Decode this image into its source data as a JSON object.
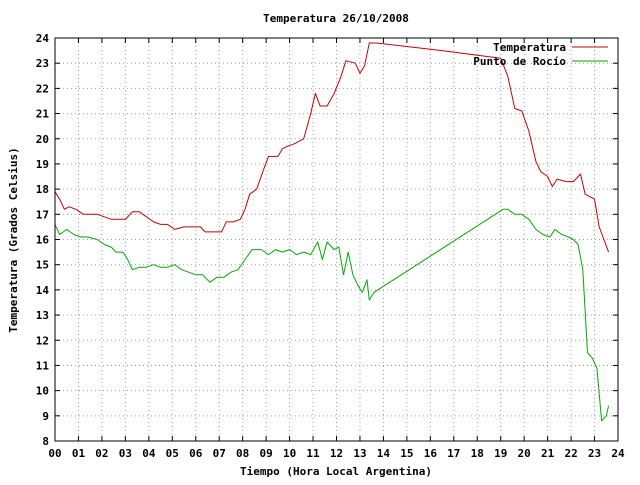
{
  "chart_data": {
    "type": "line",
    "title": "Temperatura 26/10/2008",
    "xlabel": "Tiempo (Hora Local Argentina)",
    "ylabel": "Temperatura (Grados Celsius)",
    "xlim": [
      0,
      24
    ],
    "ylim": [
      8,
      24
    ],
    "x_ticks": [
      "00",
      "01",
      "02",
      "03",
      "04",
      "05",
      "06",
      "07",
      "08",
      "09",
      "10",
      "11",
      "12",
      "13",
      "14",
      "15",
      "16",
      "17",
      "18",
      "19",
      "20",
      "21",
      "22",
      "23",
      "24"
    ],
    "y_ticks": [
      8,
      9,
      10,
      11,
      12,
      13,
      14,
      15,
      16,
      17,
      18,
      19,
      20,
      21,
      22,
      23,
      24
    ],
    "grid": true,
    "legend_position": "top-right",
    "series": [
      {
        "name": "Temperatura",
        "color": "#cc0000",
        "points": [
          [
            0.0,
            17.9
          ],
          [
            0.2,
            17.6
          ],
          [
            0.4,
            17.2
          ],
          [
            0.6,
            17.3
          ],
          [
            0.9,
            17.2
          ],
          [
            1.2,
            17.0
          ],
          [
            1.5,
            17.0
          ],
          [
            1.8,
            17.0
          ],
          [
            2.1,
            16.9
          ],
          [
            2.4,
            16.8
          ],
          [
            2.7,
            16.8
          ],
          [
            3.0,
            16.8
          ],
          [
            3.3,
            17.1
          ],
          [
            3.6,
            17.1
          ],
          [
            3.9,
            16.9
          ],
          [
            4.2,
            16.7
          ],
          [
            4.5,
            16.6
          ],
          [
            4.8,
            16.6
          ],
          [
            5.1,
            16.4
          ],
          [
            5.5,
            16.5
          ],
          [
            5.9,
            16.5
          ],
          [
            6.2,
            16.5
          ],
          [
            6.4,
            16.3
          ],
          [
            6.8,
            16.3
          ],
          [
            7.1,
            16.3
          ],
          [
            7.3,
            16.7
          ],
          [
            7.6,
            16.7
          ],
          [
            7.9,
            16.8
          ],
          [
            8.1,
            17.2
          ],
          [
            8.3,
            17.8
          ],
          [
            8.6,
            18.0
          ],
          [
            8.9,
            18.8
          ],
          [
            9.1,
            19.3
          ],
          [
            9.5,
            19.3
          ],
          [
            9.7,
            19.6
          ],
          [
            9.9,
            19.7
          ],
          [
            10.2,
            19.8
          ],
          [
            10.6,
            20.0
          ],
          [
            10.9,
            21.0
          ],
          [
            11.1,
            21.8
          ],
          [
            11.3,
            21.3
          ],
          [
            11.6,
            21.3
          ],
          [
            11.9,
            21.8
          ],
          [
            12.2,
            22.5
          ],
          [
            12.4,
            23.1
          ],
          [
            12.8,
            23.0
          ],
          [
            13.0,
            22.6
          ],
          [
            13.2,
            22.9
          ],
          [
            13.4,
            23.8
          ],
          [
            13.7,
            23.8
          ],
          [
            16.5,
            23.5
          ],
          [
            19.0,
            23.2
          ],
          [
            19.3,
            22.5
          ],
          [
            19.6,
            21.2
          ],
          [
            19.9,
            21.1
          ],
          [
            20.2,
            20.3
          ],
          [
            20.5,
            19.1
          ],
          [
            20.7,
            18.7
          ],
          [
            21.0,
            18.5
          ],
          [
            21.2,
            18.1
          ],
          [
            21.4,
            18.4
          ],
          [
            21.8,
            18.3
          ],
          [
            22.1,
            18.3
          ],
          [
            22.4,
            18.6
          ],
          [
            22.6,
            17.8
          ],
          [
            23.0,
            17.6
          ],
          [
            23.2,
            16.5
          ],
          [
            23.4,
            16.0
          ],
          [
            23.6,
            15.5
          ]
        ]
      },
      {
        "name": "Punto de Rocío",
        "color": "#00aa00",
        "points": [
          [
            0.0,
            16.6
          ],
          [
            0.2,
            16.2
          ],
          [
            0.5,
            16.4
          ],
          [
            0.8,
            16.2
          ],
          [
            1.1,
            16.1
          ],
          [
            1.4,
            16.1
          ],
          [
            1.8,
            16.0
          ],
          [
            2.1,
            15.8
          ],
          [
            2.4,
            15.7
          ],
          [
            2.6,
            15.5
          ],
          [
            2.9,
            15.5
          ],
          [
            3.1,
            15.2
          ],
          [
            3.3,
            14.8
          ],
          [
            3.6,
            14.9
          ],
          [
            3.9,
            14.9
          ],
          [
            4.2,
            15.0
          ],
          [
            4.5,
            14.9
          ],
          [
            4.8,
            14.9
          ],
          [
            5.1,
            15.0
          ],
          [
            5.4,
            14.8
          ],
          [
            5.7,
            14.7
          ],
          [
            6.0,
            14.6
          ],
          [
            6.3,
            14.6
          ],
          [
            6.6,
            14.3
          ],
          [
            6.9,
            14.5
          ],
          [
            7.2,
            14.5
          ],
          [
            7.5,
            14.7
          ],
          [
            7.8,
            14.8
          ],
          [
            8.1,
            15.2
          ],
          [
            8.4,
            15.6
          ],
          [
            8.8,
            15.6
          ],
          [
            9.1,
            15.4
          ],
          [
            9.4,
            15.6
          ],
          [
            9.7,
            15.5
          ],
          [
            10.0,
            15.6
          ],
          [
            10.3,
            15.4
          ],
          [
            10.6,
            15.5
          ],
          [
            10.9,
            15.4
          ],
          [
            11.2,
            15.9
          ],
          [
            11.4,
            15.2
          ],
          [
            11.6,
            15.9
          ],
          [
            11.9,
            15.6
          ],
          [
            12.1,
            15.7
          ],
          [
            12.3,
            14.6
          ],
          [
            12.5,
            15.5
          ],
          [
            12.7,
            14.6
          ],
          [
            12.9,
            14.2
          ],
          [
            13.1,
            13.9
          ],
          [
            13.3,
            14.4
          ],
          [
            13.4,
            13.6
          ],
          [
            13.6,
            13.9
          ],
          [
            19.1,
            17.2
          ],
          [
            19.3,
            17.2
          ],
          [
            19.6,
            17.0
          ],
          [
            19.9,
            17.0
          ],
          [
            20.2,
            16.8
          ],
          [
            20.5,
            16.4
          ],
          [
            20.8,
            16.2
          ],
          [
            21.1,
            16.1
          ],
          [
            21.3,
            16.4
          ],
          [
            21.6,
            16.2
          ],
          [
            21.9,
            16.1
          ],
          [
            22.1,
            16.0
          ],
          [
            22.3,
            15.8
          ],
          [
            22.5,
            14.8
          ],
          [
            22.7,
            11.5
          ],
          [
            22.9,
            11.3
          ],
          [
            23.1,
            10.9
          ],
          [
            23.3,
            8.8
          ],
          [
            23.5,
            9.0
          ],
          [
            23.6,
            9.4
          ]
        ]
      }
    ]
  }
}
